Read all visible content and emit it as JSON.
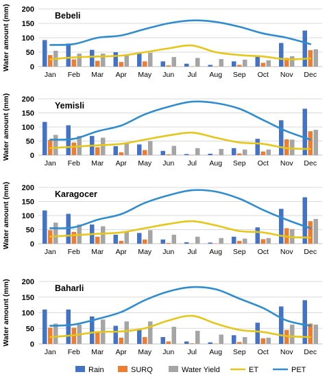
{
  "figure": {
    "x_categories": [
      "Jan",
      "Feb",
      "Mar",
      "Apr",
      "May",
      "Jun",
      "Jul",
      "Aug",
      "Sep",
      "Oct",
      "Nov",
      "Dec"
    ]
  },
  "legend": {
    "placement": "bottom-center",
    "entries": [
      {
        "key": "rain",
        "label": "Rain",
        "color": "#4472c4",
        "kind": "bar"
      },
      {
        "key": "surq",
        "label": "SURQ",
        "color": "#ed7d31",
        "kind": "bar"
      },
      {
        "key": "wy",
        "label": "Water Yield",
        "color": "#a5a5a5",
        "kind": "bar"
      },
      {
        "key": "et",
        "label": "ET",
        "color": "#e6c619",
        "kind": "line"
      },
      {
        "key": "pet",
        "label": "PET",
        "color": "#2e8ccf",
        "kind": "line"
      }
    ]
  },
  "chart_data": [
    {
      "type": "bar",
      "title": "Bebeli",
      "ylabel": "Water amount (mm)",
      "ylim": [
        0,
        200
      ],
      "yticks": [
        0,
        50,
        100,
        150,
        200
      ],
      "grid": true,
      "categories": [
        "Jan",
        "Feb",
        "Mar",
        "Apr",
        "May",
        "Jun",
        "Jul",
        "Aug",
        "Sep",
        "Oct",
        "Nov",
        "Dec"
      ],
      "series": [
        {
          "name": "Rain",
          "kind": "bar",
          "values": [
            92,
            80,
            58,
            50,
            48,
            18,
            10,
            6,
            18,
            38,
            82,
            125
          ]
        },
        {
          "name": "SURQ",
          "kind": "bar",
          "values": [
            40,
            25,
            20,
            16,
            18,
            4,
            1,
            1,
            6,
            13,
            30,
            57
          ]
        },
        {
          "name": "Water Yield",
          "kind": "bar",
          "values": [
            55,
            45,
            45,
            42,
            48,
            33,
            30,
            26,
            24,
            22,
            36,
            60
          ]
        },
        {
          "name": "ET",
          "kind": "line",
          "values": [
            25,
            32,
            35,
            38,
            50,
            63,
            73,
            50,
            40,
            35,
            25,
            28
          ]
        },
        {
          "name": "PET",
          "kind": "line",
          "values": [
            75,
            78,
            100,
            108,
            130,
            150,
            160,
            155,
            138,
            115,
            100,
            78
          ]
        }
      ]
    },
    {
      "type": "bar",
      "title": "Yemisli",
      "ylabel": "Water amount (mm)",
      "ylim": [
        0,
        200
      ],
      "yticks": [
        0,
        50,
        100,
        150,
        200
      ],
      "grid": true,
      "categories": [
        "Jan",
        "Feb",
        "Mar",
        "Apr",
        "May",
        "Jun",
        "Jul",
        "Aug",
        "Sep",
        "Oct",
        "Nov",
        "Dec"
      ],
      "series": [
        {
          "name": "Rain",
          "kind": "bar",
          "values": [
            118,
            106,
            68,
            32,
            38,
            15,
            4,
            5,
            25,
            58,
            124,
            165
          ]
        },
        {
          "name": "SURQ",
          "kind": "bar",
          "values": [
            54,
            45,
            28,
            10,
            18,
            3,
            1,
            1,
            6,
            13,
            56,
            85
          ]
        },
        {
          "name": "Water Yield",
          "kind": "bar",
          "values": [
            72,
            68,
            62,
            45,
            50,
            33,
            25,
            22,
            20,
            20,
            55,
            90
          ]
        },
        {
          "name": "ET",
          "kind": "line",
          "values": [
            25,
            30,
            35,
            40,
            55,
            70,
            80,
            62,
            45,
            40,
            25,
            22
          ]
        },
        {
          "name": "PET",
          "kind": "line",
          "values": [
            55,
            58,
            85,
            105,
            145,
            172,
            190,
            185,
            165,
            125,
            85,
            55
          ]
        }
      ]
    },
    {
      "type": "bar",
      "title": "Karagocer",
      "ylabel": "Water amount (mm)",
      "ylim": [
        0,
        200
      ],
      "yticks": [
        0,
        50,
        100,
        150,
        200
      ],
      "grid": true,
      "categories": [
        "Jan",
        "Feb",
        "Mar",
        "Apr",
        "May",
        "Jun",
        "Jul",
        "Aug",
        "Sep",
        "Oct",
        "Nov",
        "Dec"
      ],
      "series": [
        {
          "name": "Rain",
          "kind": "bar",
          "values": [
            118,
            106,
            68,
            32,
            38,
            15,
            5,
            4,
            25,
            58,
            124,
            165
          ]
        },
        {
          "name": "SURQ",
          "kind": "bar",
          "values": [
            48,
            42,
            25,
            10,
            15,
            3,
            1,
            1,
            10,
            16,
            55,
            80
          ]
        },
        {
          "name": "Water Yield",
          "kind": "bar",
          "values": [
            75,
            68,
            62,
            45,
            48,
            32,
            25,
            20,
            18,
            20,
            52,
            88
          ]
        },
        {
          "name": "ET",
          "kind": "line",
          "values": [
            25,
            30,
            35,
            40,
            55,
            70,
            80,
            65,
            45,
            40,
            25,
            22
          ]
        },
        {
          "name": "PET",
          "kind": "line",
          "values": [
            55,
            58,
            85,
            105,
            145,
            172,
            190,
            185,
            160,
            120,
            85,
            55
          ]
        }
      ]
    },
    {
      "type": "bar",
      "title": "Baharli",
      "ylabel": "Water amount (mm)",
      "ylim": [
        0,
        200
      ],
      "yticks": [
        0,
        50,
        100,
        150,
        200
      ],
      "grid": true,
      "categories": [
        "Jan",
        "Feb",
        "Mar",
        "Apr",
        "May",
        "Jun",
        "Jul",
        "Aug",
        "Sep",
        "Oct",
        "Nov",
        "Dec"
      ],
      "series": [
        {
          "name": "Rain",
          "kind": "bar",
          "values": [
            110,
            110,
            88,
            58,
            48,
            22,
            8,
            5,
            28,
            68,
            120,
            140
          ]
        },
        {
          "name": "SURQ",
          "kind": "bar",
          "values": [
            52,
            52,
            38,
            20,
            22,
            8,
            2,
            1,
            6,
            18,
            45,
            65
          ]
        },
        {
          "name": "Water Yield",
          "kind": "bar",
          "values": [
            65,
            62,
            78,
            72,
            72,
            55,
            42,
            30,
            22,
            20,
            62,
            62
          ]
        },
        {
          "name": "ET",
          "kind": "line",
          "values": [
            22,
            28,
            38,
            40,
            50,
            75,
            90,
            65,
            45,
            38,
            25,
            22
          ]
        },
        {
          "name": "PET",
          "kind": "line",
          "values": [
            58,
            62,
            80,
            102,
            140,
            168,
            182,
            175,
            145,
            115,
            75,
            58
          ]
        }
      ]
    }
  ]
}
